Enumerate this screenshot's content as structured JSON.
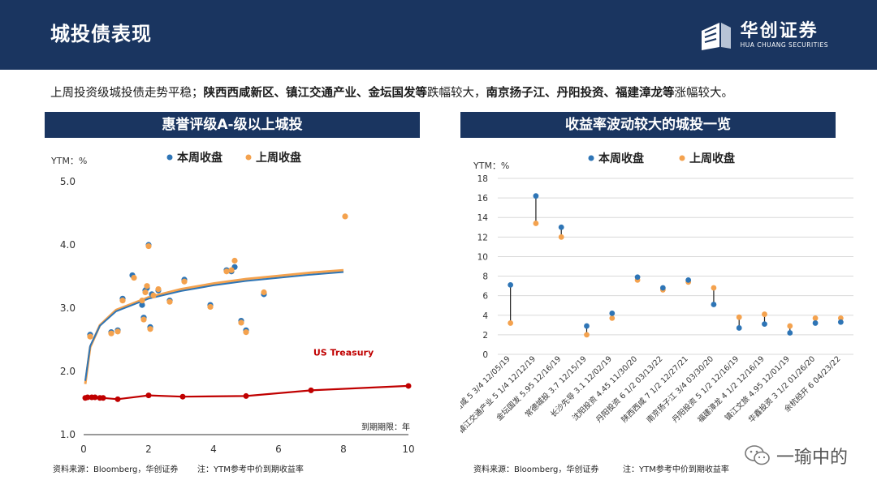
{
  "header": {
    "title": "城投债表现"
  },
  "brand": {
    "name_cn": "华创证券",
    "name_en": "HUA CHUANG SECURITIES"
  },
  "summary": {
    "lead": "上周投资级城投债走势平稳；",
    "decliners": "陕西西咸新区、镇江交通产业、金坛国发等",
    "decline_word": "跌幅较大，",
    "gainers": "南京扬子江、丹阳投资、福建漳龙等",
    "gain_word": "涨幅较大。"
  },
  "left_panel": {
    "title": "惠誉评级A-级以上城投"
  },
  "right_panel": {
    "title": "收益率波动较大的城投一览"
  },
  "colors": {
    "this_week": "#2e75b6",
    "last_week": "#f4a24e",
    "treasury": "#c00000",
    "navy": "#1a3560"
  },
  "chart_data": [
    {
      "type": "scatter",
      "title": "惠誉评级A-级以上城投",
      "ylabel": "YTM：%",
      "xlabel": "到期期限：年",
      "xlim": [
        0,
        10
      ],
      "ylim": [
        1.0,
        5.0
      ],
      "xticks": [
        0,
        2,
        4,
        6,
        8,
        10
      ],
      "yticks": [
        "1.0",
        "2.0",
        "3.0",
        "4.0",
        "5.0"
      ],
      "legend": [
        "本周收盘",
        "上周收盘"
      ],
      "series": [
        {
          "name": "本周收盘",
          "points": [
            [
              0.2,
              2.58
            ],
            [
              0.85,
              2.62
            ],
            [
              1.05,
              2.65
            ],
            [
              1.2,
              3.15
            ],
            [
              1.5,
              3.52
            ],
            [
              1.8,
              3.05
            ],
            [
              1.85,
              2.85
            ],
            [
              1.9,
              3.28
            ],
            [
              1.95,
              3.32
            ],
            [
              2.0,
              4.0
            ],
            [
              2.05,
              2.7
            ],
            [
              2.1,
              3.22
            ],
            [
              2.3,
              3.28
            ],
            [
              2.65,
              3.12
            ],
            [
              3.1,
              3.45
            ],
            [
              3.9,
              3.05
            ],
            [
              4.4,
              3.6
            ],
            [
              4.55,
              3.58
            ],
            [
              4.65,
              3.65
            ],
            [
              4.85,
              2.8
            ],
            [
              5.0,
              2.65
            ],
            [
              5.55,
              3.22
            ]
          ]
        },
        {
          "name": "上周收盘",
          "points": [
            [
              0.2,
              2.55
            ],
            [
              0.85,
              2.6
            ],
            [
              1.05,
              2.63
            ],
            [
              1.2,
              3.12
            ],
            [
              1.55,
              3.48
            ],
            [
              1.8,
              3.12
            ],
            [
              1.85,
              2.82
            ],
            [
              1.9,
              3.25
            ],
            [
              1.95,
              3.35
            ],
            [
              2.0,
              3.98
            ],
            [
              2.05,
              2.67
            ],
            [
              2.15,
              3.2
            ],
            [
              2.3,
              3.3
            ],
            [
              2.65,
              3.1
            ],
            [
              3.1,
              3.42
            ],
            [
              3.9,
              3.02
            ],
            [
              4.4,
              3.58
            ],
            [
              4.55,
              3.6
            ],
            [
              4.65,
              3.75
            ],
            [
              4.85,
              2.77
            ],
            [
              5.0,
              2.62
            ],
            [
              5.55,
              3.25
            ],
            [
              8.05,
              4.45
            ]
          ]
        }
      ],
      "curves": [
        {
          "name": "本周收盘拟合",
          "points": [
            [
              0.05,
              1.85
            ],
            [
              0.2,
              2.4
            ],
            [
              0.5,
              2.72
            ],
            [
              1,
              2.95
            ],
            [
              2,
              3.15
            ],
            [
              3,
              3.27
            ],
            [
              4,
              3.36
            ],
            [
              5,
              3.43
            ],
            [
              6,
              3.48
            ],
            [
              7,
              3.53
            ],
            [
              8,
              3.57
            ]
          ]
        },
        {
          "name": "上周收盘拟合",
          "points": [
            [
              0.05,
              1.8
            ],
            [
              0.2,
              2.38
            ],
            [
              0.5,
              2.73
            ],
            [
              1,
              2.97
            ],
            [
              2,
              3.17
            ],
            [
              3,
              3.3
            ],
            [
              4,
              3.39
            ],
            [
              5,
              3.46
            ],
            [
              6,
              3.51
            ],
            [
              7,
              3.56
            ],
            [
              8,
              3.6
            ]
          ]
        }
      ],
      "treasury": {
        "label": "US Treasury",
        "points": [
          [
            0.05,
            1.58
          ],
          [
            0.12,
            1.59
          ],
          [
            0.25,
            1.59
          ],
          [
            0.35,
            1.59
          ],
          [
            0.5,
            1.58
          ],
          [
            0.6,
            1.58
          ],
          [
            1.05,
            1.56
          ],
          [
            2.0,
            1.62
          ],
          [
            3.05,
            1.6
          ],
          [
            5.0,
            1.61
          ],
          [
            7.0,
            1.7
          ],
          [
            10.0,
            1.77
          ]
        ]
      },
      "source": "资料来源：Bloomberg，华创证券",
      "note": "注：YTM参考中价到期收益率"
    },
    {
      "type": "dot-range",
      "title": "收益率波动较大的城投一览",
      "ylabel": "YTM：%",
      "ylim": [
        0,
        18
      ],
      "yticks": [
        "0",
        "2",
        "4",
        "6",
        "8",
        "10",
        "12",
        "14",
        "16",
        "18"
      ],
      "legend": [
        "本周收盘",
        "上周收盘"
      ],
      "categories": [
        "陕西西咸 5 3/4 12/05/19",
        "镇江交通产业 5 1/4 12/12/19",
        "金坛国发 5.95 12/16/19",
        "常德城投 3.7 12/15/19",
        "长沙先导 3.1 12/02/19",
        "沈阳投资 4.45 11/30/20",
        "丹阳投资 6 1/2 03/13/22",
        "陕西西咸 7 1/2 12/27/21",
        "南京扬子江 3/4 03/30/20",
        "丹阳投资 5 1/2 12/16/19",
        "福建漳龙 4 1/2 12/16/19",
        "镇江文旅 4.95 12/01/19",
        "华鑫投资 3 1/2 01/26/20",
        "余杭经开 6 04/23/22"
      ],
      "this_week": [
        7.1,
        16.2,
        13.0,
        2.9,
        4.2,
        7.9,
        6.8,
        7.6,
        5.1,
        2.7,
        3.1,
        2.2,
        3.2,
        3.3
      ],
      "last_week": [
        3.2,
        13.4,
        12.0,
        2.0,
        3.7,
        7.6,
        6.6,
        7.4,
        6.8,
        3.8,
        4.1,
        2.9,
        3.7,
        3.7
      ],
      "source": "资料来源：Bloomberg，华创证券",
      "note": "注：YTM参考中价到期收益率"
    }
  ],
  "watermark": {
    "text": "一瑜中的"
  }
}
